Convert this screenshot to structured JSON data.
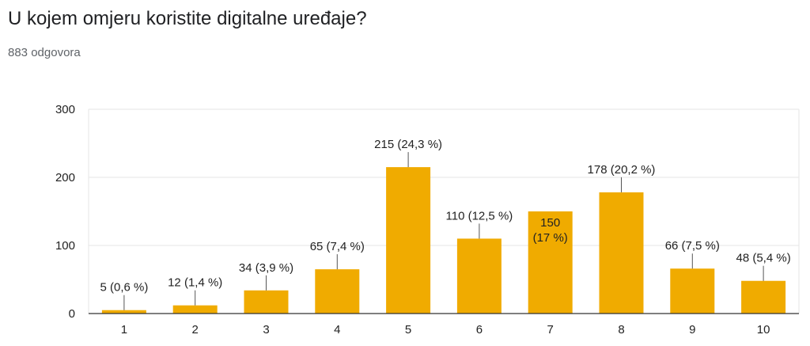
{
  "header": {
    "title": "U kojem omjeru koristite digitalne uređaje?",
    "responses": "883 odgovora"
  },
  "colors": {
    "bar": "#f0ab00",
    "grid": "#e6e6e6",
    "axis": "#333333",
    "leader": "#555555"
  },
  "chart_data": {
    "type": "bar",
    "categories": [
      "1",
      "2",
      "3",
      "4",
      "5",
      "6",
      "7",
      "8",
      "9",
      "10"
    ],
    "values": [
      5,
      12,
      34,
      65,
      215,
      110,
      150,
      178,
      66,
      48
    ],
    "labels": [
      "5 (0,6 %)",
      "12 (1,4 %)",
      "34 (3,9 %)",
      "65 (7,4 %)",
      "215 (24,3 %)",
      "110 (12,5 %)",
      "150\n(17 %)",
      "178 (20,2 %)",
      "66 (7,5 %)",
      "48 (5,4 %)"
    ],
    "yticks": [
      0,
      100,
      200,
      300
    ],
    "ylim": [
      0,
      300
    ],
    "title": "",
    "xlabel": "",
    "ylabel": "",
    "grid": true,
    "legend": "none"
  }
}
